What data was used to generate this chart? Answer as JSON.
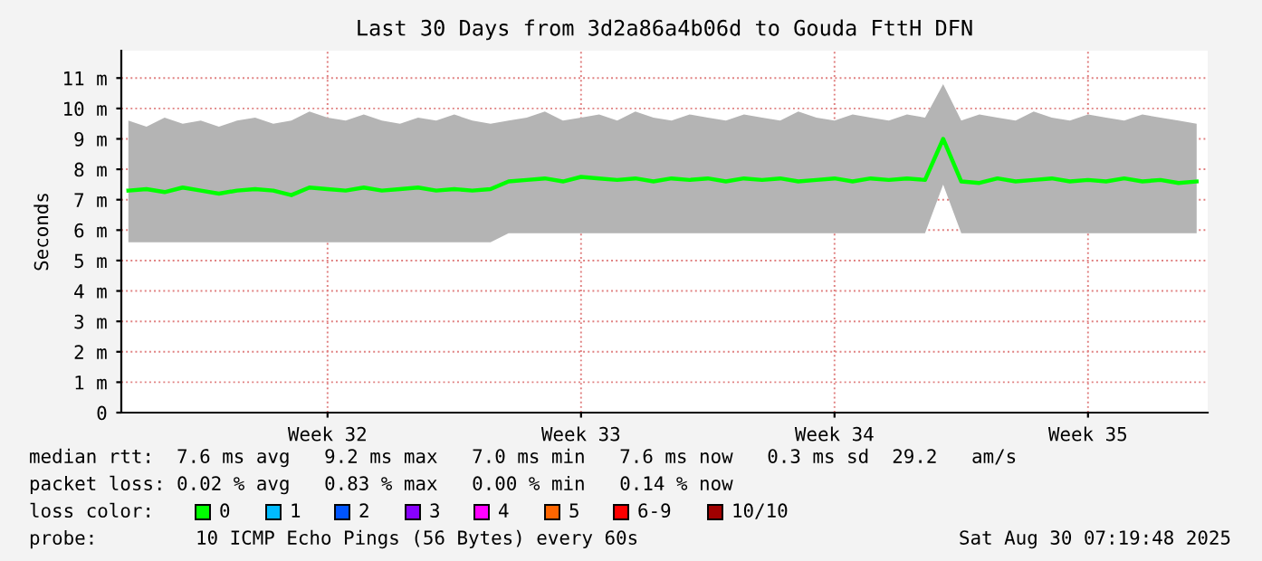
{
  "chart_data": {
    "type": "line",
    "title": "Last 30 Days from 3d2a86a4b06d to Gouda FttH DFN",
    "ylabel": "Seconds",
    "xlim": [
      "2025-07-31T07:19",
      "2025-08-30T07:19"
    ],
    "xticks": [
      {
        "value": "2025-08-06T00:00",
        "label": "Week 32"
      },
      {
        "value": "2025-08-13T00:00",
        "label": "Week 33"
      },
      {
        "value": "2025-08-20T00:00",
        "label": "Week 34"
      },
      {
        "value": "2025-08-27T00:00",
        "label": "Week 35"
      }
    ],
    "ylim": [
      0,
      11.9
    ],
    "yticks": [
      0,
      {
        "value": 1,
        "label": "1 m"
      },
      {
        "value": 2,
        "label": "2 m"
      },
      {
        "value": 3,
        "label": "3 m"
      },
      {
        "value": 4,
        "label": "4 m"
      },
      {
        "value": 5,
        "label": "5 m"
      },
      {
        "value": 6,
        "label": "6 m"
      },
      {
        "value": 7,
        "label": "7 m"
      },
      {
        "value": 8,
        "label": "8 m"
      },
      {
        "value": 9,
        "label": "9 m"
      },
      {
        "value": 10,
        "label": "10 m"
      },
      {
        "value": 11,
        "label": "11 m"
      }
    ],
    "grid": true,
    "series": [
      {
        "color": "#00ff00",
        "x": [
          "2025-07-31T12:00",
          "2025-08-01T00:00",
          "2025-08-01T12:00",
          "2025-08-02T00:00",
          "2025-08-02T12:00",
          "2025-08-03T00:00",
          "2025-08-03T12:00",
          "2025-08-04T00:00",
          "2025-08-04T12:00",
          "2025-08-05T00:00",
          "2025-08-05T12:00",
          "2025-08-06T00:00",
          "2025-08-06T12:00",
          "2025-08-07T00:00",
          "2025-08-07T12:00",
          "2025-08-08T00:00",
          "2025-08-08T12:00",
          "2025-08-09T00:00",
          "2025-08-09T12:00",
          "2025-08-10T00:00",
          "2025-08-10T12:00",
          "2025-08-11T00:00",
          "2025-08-11T12:00",
          "2025-08-12T00:00",
          "2025-08-12T12:00",
          "2025-08-13T00:00",
          "2025-08-13T12:00",
          "2025-08-14T00:00",
          "2025-08-14T12:00",
          "2025-08-15T00:00",
          "2025-08-15T12:00",
          "2025-08-16T00:00",
          "2025-08-16T12:00",
          "2025-08-17T00:00",
          "2025-08-17T12:00",
          "2025-08-18T00:00",
          "2025-08-18T12:00",
          "2025-08-19T00:00",
          "2025-08-19T12:00",
          "2025-08-20T00:00",
          "2025-08-20T12:00",
          "2025-08-21T00:00",
          "2025-08-21T12:00",
          "2025-08-22T00:00",
          "2025-08-22T12:00",
          "2025-08-23T00:00",
          "2025-08-23T12:00",
          "2025-08-24T00:00",
          "2025-08-24T12:00",
          "2025-08-25T00:00",
          "2025-08-25T12:00",
          "2025-08-26T00:00",
          "2025-08-26T12:00",
          "2025-08-27T00:00",
          "2025-08-27T12:00",
          "2025-08-28T00:00",
          "2025-08-28T12:00",
          "2025-08-29T00:00",
          "2025-08-29T12:00",
          "2025-08-30T00:00"
        ],
        "values": [
          7.3,
          7.35,
          7.25,
          7.4,
          7.3,
          7.2,
          7.3,
          7.35,
          7.3,
          7.15,
          7.4,
          7.35,
          7.3,
          7.4,
          7.3,
          7.35,
          7.4,
          7.3,
          7.35,
          7.3,
          7.35,
          7.6,
          7.65,
          7.7,
          7.6,
          7.75,
          7.7,
          7.65,
          7.7,
          7.6,
          7.7,
          7.65,
          7.7,
          7.6,
          7.7,
          7.65,
          7.7,
          7.6,
          7.65,
          7.7,
          7.6,
          7.7,
          7.65,
          7.7,
          7.65,
          9.0,
          7.6,
          7.55,
          7.7,
          7.6,
          7.65,
          7.7,
          7.6,
          7.65,
          7.6,
          7.7,
          7.6,
          7.65,
          7.55,
          7.6
        ],
        "lower": [
          5.6,
          5.6,
          5.6,
          5.6,
          5.6,
          5.6,
          5.6,
          5.6,
          5.6,
          5.6,
          5.6,
          5.6,
          5.6,
          5.6,
          5.6,
          5.6,
          5.6,
          5.6,
          5.6,
          5.6,
          5.6,
          5.9,
          5.9,
          5.9,
          5.9,
          5.9,
          5.9,
          5.9,
          5.9,
          5.9,
          5.9,
          5.9,
          5.9,
          5.9,
          5.9,
          5.9,
          5.9,
          5.9,
          5.9,
          5.9,
          5.9,
          5.9,
          5.9,
          5.9,
          5.9,
          7.5,
          5.9,
          5.9,
          5.9,
          5.9,
          5.9,
          5.9,
          5.9,
          5.9,
          5.9,
          5.9,
          5.9,
          5.9,
          5.9,
          5.9
        ],
        "upper": [
          9.6,
          9.4,
          9.7,
          9.5,
          9.6,
          9.4,
          9.6,
          9.7,
          9.5,
          9.6,
          9.9,
          9.7,
          9.6,
          9.8,
          9.6,
          9.5,
          9.7,
          9.6,
          9.8,
          9.6,
          9.5,
          9.6,
          9.7,
          9.9,
          9.6,
          9.7,
          9.8,
          9.6,
          9.9,
          9.7,
          9.6,
          9.8,
          9.7,
          9.6,
          9.8,
          9.7,
          9.6,
          9.9,
          9.7,
          9.6,
          9.8,
          9.7,
          9.6,
          9.8,
          9.7,
          10.8,
          9.6,
          9.8,
          9.7,
          9.6,
          9.9,
          9.7,
          9.6,
          9.8,
          9.7,
          9.6,
          9.8,
          9.7,
          9.6,
          9.5
        ]
      }
    ],
    "annotations": [
      "median rtt:  7.6 ms avg   9.2 ms max   7.0 ms min   7.6 ms now   0.3 ms sd  29.2   am/s",
      "packet loss: 0.02 % avg   0.83 % max   0.00 % min   0.14 % now",
      "loss color:",
      "0",
      "1",
      "2",
      "3",
      "4",
      "5",
      "6-9",
      "10/10",
      "probe:",
      "10 ICMP Echo Pings (56 Bytes) every 60s",
      "Sat Aug 30 07:19:48 2025"
    ]
  }
}
